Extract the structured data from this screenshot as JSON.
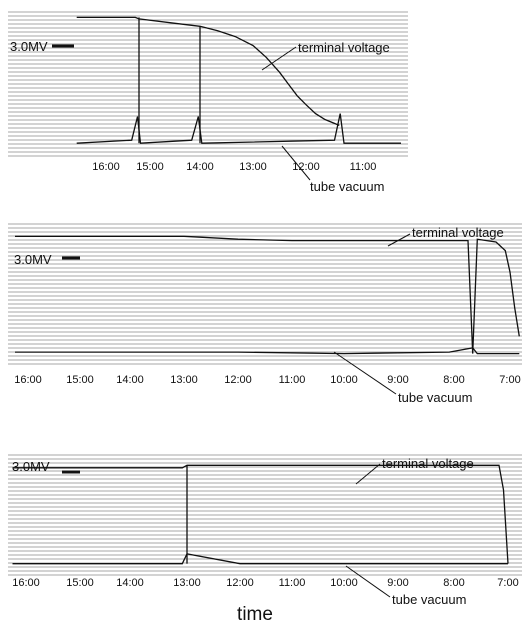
{
  "chart_data": [
    {
      "type": "line",
      "panel": "top",
      "x_order": "descending",
      "x_ticks": [
        "16:00",
        "15:00",
        "14:00",
        "13:00",
        "12:00",
        "11:00"
      ],
      "x_range": [
        "16:40",
        "10:20"
      ],
      "level_label": "3.0MV",
      "annotations": [
        "terminal voltage",
        "tube vacuum"
      ],
      "series": [
        {
          "annotation": "terminal voltage",
          "points": [
            {
              "t": "16:40",
              "v": 0.95
            },
            {
              "t": "15:20",
              "v": 0.95
            },
            {
              "t": "15:15",
              "v": 0.94
            },
            {
              "t": "14:30",
              "v": 0.91
            },
            {
              "t": "14:00",
              "v": 0.89
            },
            {
              "t": "13:40",
              "v": 0.86
            },
            {
              "t": "13:20",
              "v": 0.82
            },
            {
              "t": "13:00",
              "v": 0.76
            },
            {
              "t": "12:45",
              "v": 0.68
            },
            {
              "t": "12:30",
              "v": 0.58
            },
            {
              "t": "12:20",
              "v": 0.5
            },
            {
              "t": "12:10",
              "v": 0.42
            },
            {
              "t": "12:00",
              "v": 0.36
            },
            {
              "t": "11:50",
              "v": 0.3
            },
            {
              "t": "11:40",
              "v": 0.26
            },
            {
              "t": "11:25",
              "v": 0.22
            }
          ]
        },
        {
          "annotation": "tube vacuum",
          "points": [
            {
              "t": "16:40",
              "v": 0.1
            },
            {
              "t": "15:25",
              "v": 0.12
            },
            {
              "t": "15:17",
              "v": 0.28
            },
            {
              "t": "15:13",
              "v": 0.1
            },
            {
              "t": "14:10",
              "v": 0.12
            },
            {
              "t": "14:02",
              "v": 0.28
            },
            {
              "t": "13:58",
              "v": 0.1
            },
            {
              "t": "11:30",
              "v": 0.12
            },
            {
              "t": "11:24",
              "v": 0.3
            },
            {
              "t": "11:20",
              "v": 0.1
            },
            {
              "t": "10:20",
              "v": 0.1
            }
          ]
        },
        {
          "annotation": "spike-15:15",
          "points": [
            {
              "t": "15:15",
              "v": 0.1
            },
            {
              "t": "15:15",
              "v": 0.95
            }
          ]
        },
        {
          "annotation": "spike-14:00",
          "points": [
            {
              "t": "14:00",
              "v": 0.1
            },
            {
              "t": "14:00",
              "v": 0.89
            }
          ]
        }
      ]
    },
    {
      "type": "line",
      "panel": "middle",
      "x_order": "descending",
      "x_ticks": [
        "16:00",
        "15:00",
        "14:00",
        "13:00",
        "12:00",
        "11:00",
        "10:00",
        "9:00",
        "8:00",
        "7:00"
      ],
      "x_range": [
        "16:15",
        "6:50"
      ],
      "level_label": "3.0MV",
      "annotations": [
        "terminal voltage",
        "tube vacuum"
      ],
      "series": [
        {
          "annotation": "terminal voltage",
          "points": [
            {
              "t": "16:15",
              "v": 0.9
            },
            {
              "t": "13:00",
              "v": 0.9
            },
            {
              "t": "12:00",
              "v": 0.88
            },
            {
              "t": "11:00",
              "v": 0.87
            },
            {
              "t": "10:00",
              "v": 0.87
            },
            {
              "t": "9:00",
              "v": 0.87
            },
            {
              "t": "8:00",
              "v": 0.87
            },
            {
              "t": "7:45",
              "v": 0.87
            },
            {
              "t": "7:40",
              "v": 0.08
            },
            {
              "t": "7:35",
              "v": 0.88
            },
            {
              "t": "7:15",
              "v": 0.86
            },
            {
              "t": "7:05",
              "v": 0.8
            },
            {
              "t": "7:00",
              "v": 0.65
            },
            {
              "t": "6:55",
              "v": 0.4
            },
            {
              "t": "6:50",
              "v": 0.2
            }
          ]
        },
        {
          "annotation": "tube vacuum",
          "points": [
            {
              "t": "16:15",
              "v": 0.09
            },
            {
              "t": "12:00",
              "v": 0.09
            },
            {
              "t": "10:00",
              "v": 0.08
            },
            {
              "t": "8:05",
              "v": 0.09
            },
            {
              "t": "7:40",
              "v": 0.12
            },
            {
              "t": "7:35",
              "v": 0.08
            },
            {
              "t": "6:50",
              "v": 0.08
            }
          ]
        }
      ]
    },
    {
      "type": "line",
      "panel": "bottom",
      "x_order": "descending",
      "x_ticks": [
        "16:00",
        "15:00",
        "14:00",
        "13:00",
        "12:00",
        "11:00",
        "10:00",
        "9:00",
        "8:00",
        "7:00"
      ],
      "x_range": [
        "16:15",
        "6:50"
      ],
      "level_label": "3.0MV",
      "annotations": [
        "terminal voltage",
        "tube vacuum"
      ],
      "x_label": "time",
      "series": [
        {
          "annotation": "terminal voltage",
          "points": [
            {
              "t": "16:15",
              "v": 0.88
            },
            {
              "t": "13:05",
              "v": 0.88
            },
            {
              "t": "13:00",
              "v": 0.9
            },
            {
              "t": "10:00",
              "v": 0.9
            },
            {
              "t": "8:00",
              "v": 0.9
            },
            {
              "t": "7:10",
              "v": 0.9
            },
            {
              "t": "7:05",
              "v": 0.7
            },
            {
              "t": "7:00",
              "v": 0.1
            }
          ]
        },
        {
          "annotation": "tube vacuum",
          "points": [
            {
              "t": "16:15",
              "v": 0.1
            },
            {
              "t": "13:05",
              "v": 0.1
            },
            {
              "t": "13:00",
              "v": 0.18
            },
            {
              "t": "12:00",
              "v": 0.1
            },
            {
              "t": "10:00",
              "v": 0.1
            },
            {
              "t": "8:00",
              "v": 0.1
            },
            {
              "t": "7:00",
              "v": 0.1
            }
          ]
        },
        {
          "annotation": "step-13:00",
          "points": [
            {
              "t": "13:00",
              "v": 0.1
            },
            {
              "t": "13:00",
              "v": 0.9
            }
          ]
        }
      ]
    }
  ]
}
